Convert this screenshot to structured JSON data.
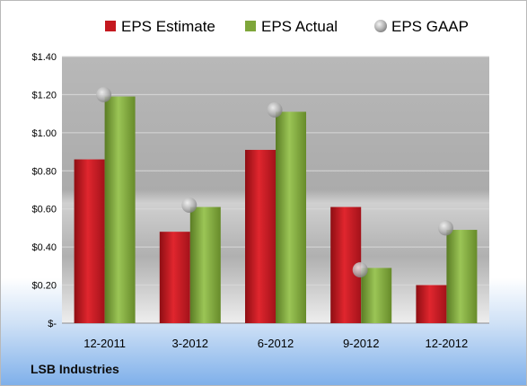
{
  "company": "LSB Industries",
  "colors": {
    "estimate": "#c4181f",
    "actual": "#7ea63a",
    "gaap": "#a8a8a8"
  },
  "chart_data": {
    "type": "bar",
    "categories": [
      "12-2011",
      "3-2012",
      "6-2012",
      "9-2012",
      "12-2012"
    ],
    "series": [
      {
        "name": "EPS Estimate",
        "values": [
          0.86,
          0.48,
          0.91,
          0.61,
          0.2
        ]
      },
      {
        "name": "EPS Actual",
        "values": [
          1.19,
          0.61,
          1.11,
          0.29,
          0.49
        ]
      },
      {
        "name": "EPS GAAP",
        "type": "scatter",
        "values": [
          1.2,
          0.62,
          1.12,
          0.28,
          0.5
        ]
      }
    ],
    "yticks": [
      "$-",
      "$0.20",
      "$0.40",
      "$0.60",
      "$0.80",
      "$1.00",
      "$1.20",
      "$1.40"
    ],
    "ylim": [
      0,
      1.4
    ],
    "grid": true,
    "legend": "top"
  }
}
